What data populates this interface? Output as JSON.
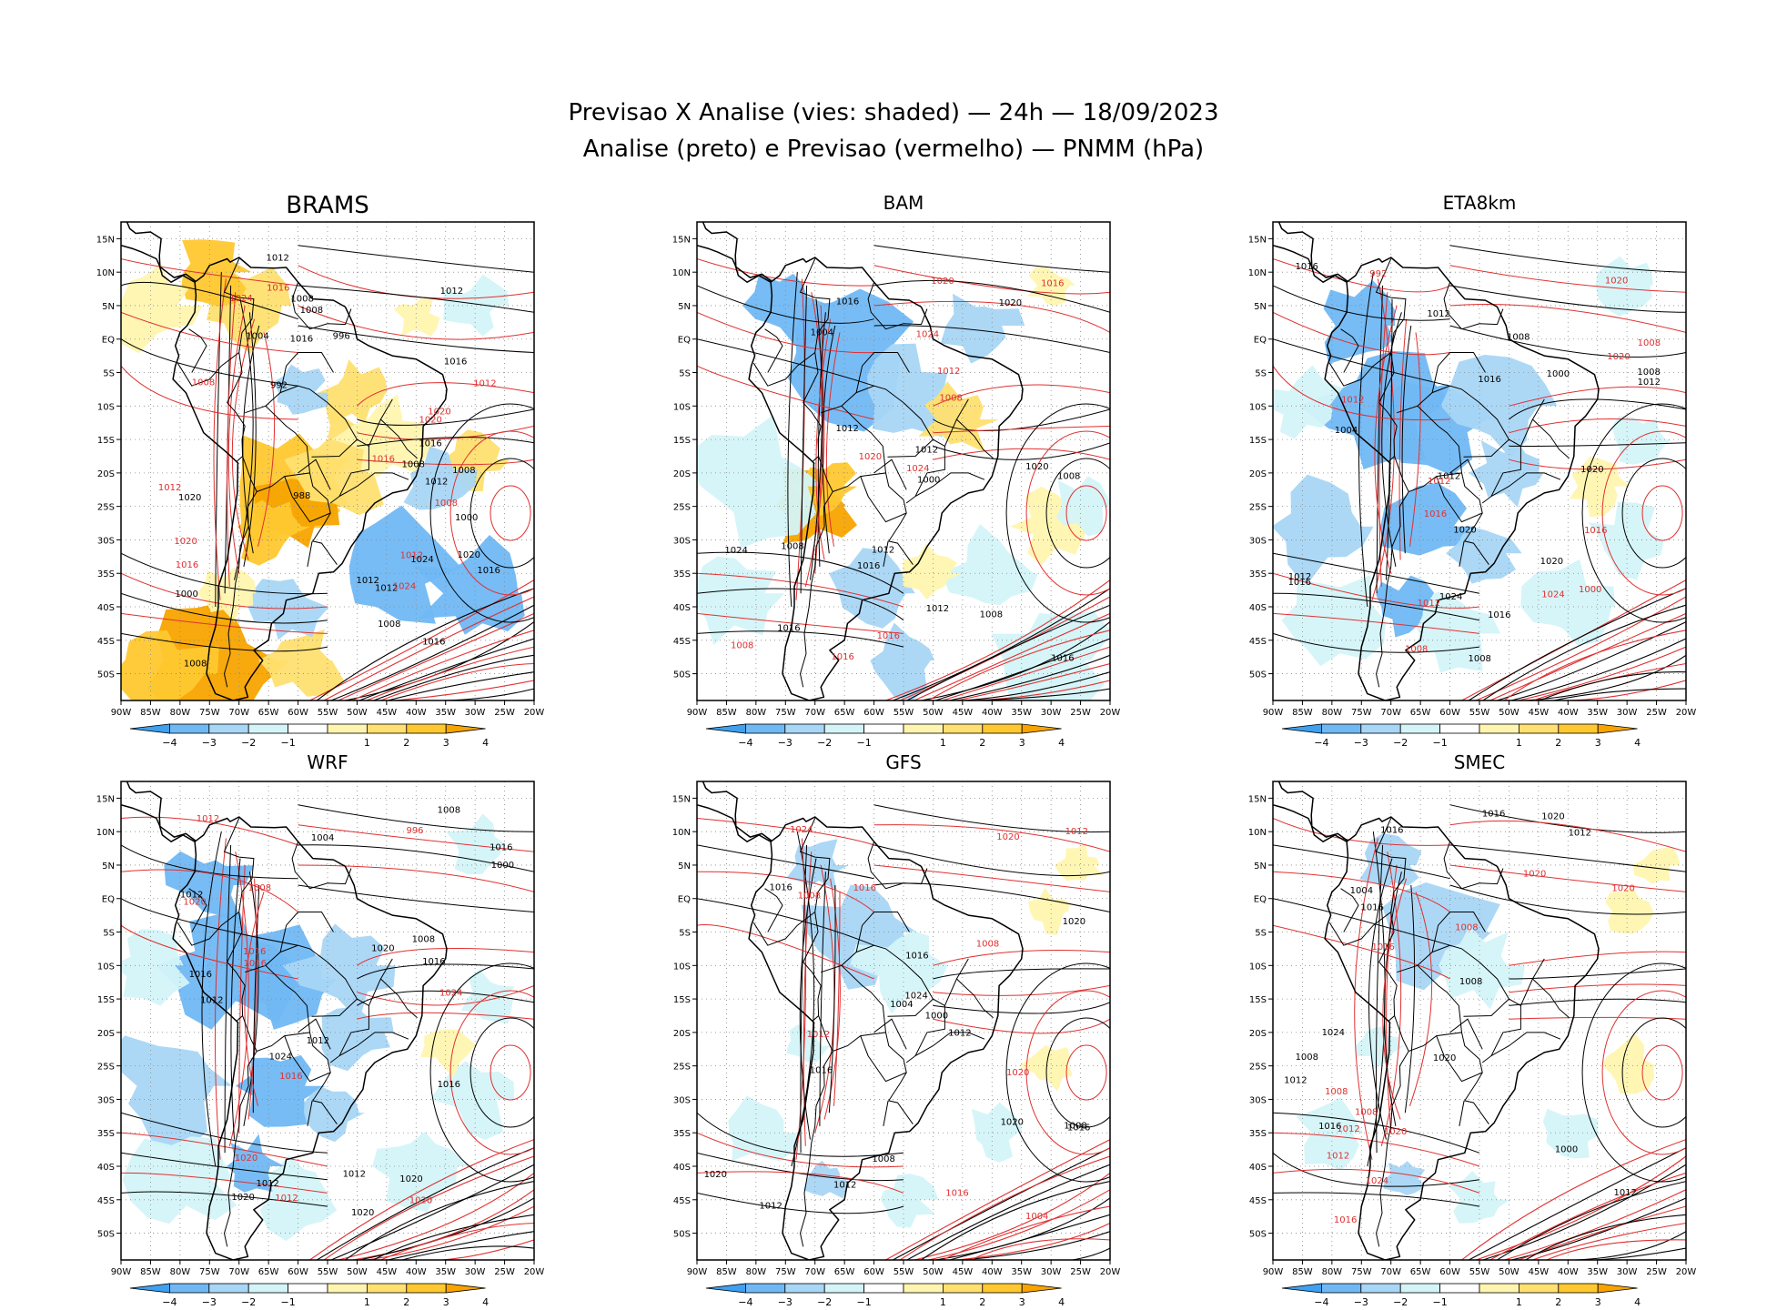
{
  "header": {
    "line1": "Previsao X Analise (vies: shaded) — 24h — 18/09/2023",
    "line2": "Analise (preto) e Previsao (vermelho) — PNMM (hPa)"
  },
  "colors": {
    "analysis_contour": "#000000",
    "forecast_contour": "#e03030",
    "bias_scale": [
      "#3fa0f0",
      "#70b8f4",
      "#a8d6f6",
      "#d4f4f8",
      "#ffffff",
      "#fff5b0",
      "#ffe070",
      "#ffc830",
      "#f7a400"
    ],
    "frame": "#000000",
    "grid": "#888888"
  },
  "axes": {
    "lat_labels": [
      "15N",
      "10N",
      "5N",
      "EQ",
      "5S",
      "10S",
      "15S",
      "20S",
      "25S",
      "30S",
      "35S",
      "40S",
      "45S",
      "50S"
    ],
    "lon_labels": [
      "90W",
      "85W",
      "80W",
      "75W",
      "70W",
      "65W",
      "60W",
      "55W",
      "50W",
      "45W",
      "40W",
      "35W",
      "30W",
      "25W",
      "20W"
    ]
  },
  "colorbar": {
    "tick_labels": [
      "−4",
      "−3",
      "−2",
      "−1",
      "1",
      "2",
      "3",
      "4"
    ]
  },
  "panels": [
    {
      "title": "BRAMS",
      "bias": "warm",
      "labels_black": [
        "1008",
        "1012",
        "1012",
        "1008",
        "1008",
        "1008",
        "1012",
        "1012",
        "1016",
        "1004",
        "1008",
        "1016",
        "1000",
        "1016",
        "1020",
        "1020",
        "1024",
        "1016",
        "1012",
        "1008",
        "1000",
        "996",
        "992",
        "988",
        "1016"
      ],
      "labels_red": [
        "1008",
        "1012",
        "1012",
        "1008",
        "1016",
        "1020",
        "1024",
        "1016",
        "1012",
        "1020",
        "1024",
        "1016",
        "1020"
      ]
    },
    {
      "title": "BAM",
      "bias": "mixed",
      "labels_black": [
        "1008",
        "1012",
        "1016",
        "1012",
        "1008",
        "1016",
        "1004",
        "1000",
        "1012",
        "1020",
        "1024",
        "1016",
        "1012",
        "1008",
        "1020",
        "1016"
      ],
      "labels_red": [
        "1008",
        "1008",
        "1016",
        "1020",
        "1024",
        "1016",
        "1012",
        "1024",
        "1016",
        "1020"
      ]
    },
    {
      "title": "ETA8km",
      "bias": "cold",
      "labels_black": [
        "1008",
        "1012",
        "1012",
        "1016",
        "1008",
        "1004",
        "1000",
        "1016",
        "1020",
        "1024",
        "1012",
        "1016",
        "1016",
        "1012",
        "1020",
        "1020",
        "1008"
      ],
      "labels_red": [
        "1008",
        "1012",
        "1012",
        "1008",
        "1016",
        "1020",
        "1024",
        "1016",
        "1012",
        "1020",
        "1000",
        "992"
      ]
    },
    {
      "title": "WRF",
      "bias": "cold",
      "labels_black": [
        "1012",
        "1012",
        "1016",
        "1008",
        "1020",
        "1012",
        "1016",
        "1004",
        "1008",
        "1000",
        "1016",
        "1020",
        "1012",
        "1016",
        "1012",
        "1020",
        "1024",
        "1020"
      ],
      "labels_red": [
        "1016",
        "1008",
        "1012",
        "1016",
        "1020",
        "1024",
        "1016",
        "1012",
        "1020",
        "996",
        "1020"
      ]
    },
    {
      "title": "GFS",
      "bias": "light",
      "labels_black": [
        "1012",
        "1016",
        "1012",
        "1008",
        "1004",
        "1016",
        "1000",
        "1008",
        "1020",
        "1024",
        "1016",
        "1016",
        "1012",
        "1020",
        "1020"
      ],
      "labels_red": [
        "1008",
        "1008",
        "1004",
        "1016",
        "1012",
        "1020",
        "1024",
        "1016",
        "1012",
        "1020"
      ]
    },
    {
      "title": "SMEC",
      "bias": "light",
      "labels_black": [
        "1016",
        "1012",
        "1008",
        "1004",
        "1016",
        "1000",
        "1008",
        "1020",
        "1024",
        "1016",
        "1016",
        "1012",
        "1020",
        "1012"
      ],
      "labels_red": [
        "1008",
        "1008",
        "1012",
        "1016",
        "1020",
        "1024",
        "1016",
        "1012",
        "1020",
        "1008",
        "1020"
      ]
    }
  ]
}
